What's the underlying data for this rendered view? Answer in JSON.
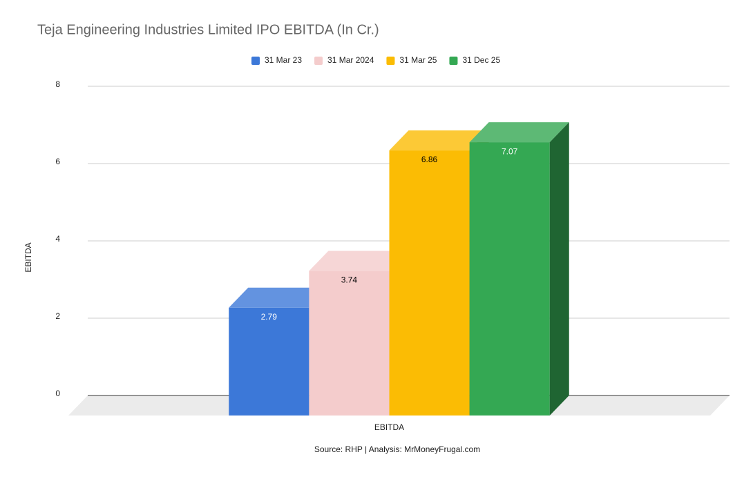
{
  "chart_data": {
    "type": "bar3d",
    "title": "Teja Engineering Industries Limited IPO EBITDA (In Cr.)",
    "y_label": "EBITDA",
    "source": "Source: RHP | Analysis: MrMoneyFrugal.com",
    "categories": [
      "EBITDA"
    ],
    "series": [
      {
        "name": "31 Mar 23",
        "color": "#3c78d8",
        "values": [
          2.79
        ]
      },
      {
        "name": "31 Mar 2024",
        "color": "#f4cccc",
        "values": [
          3.74
        ]
      },
      {
        "name": "31 Mar 25",
        "color": "#fbbc04",
        "values": [
          6.86
        ]
      },
      {
        "name": "31 Dec 25",
        "color": "#34a853",
        "values": [
          7.07
        ]
      }
    ],
    "ylim": [
      0,
      8
    ],
    "yticks": [
      0,
      2,
      4,
      6,
      8
    ],
    "grid": true,
    "legend": "top"
  }
}
